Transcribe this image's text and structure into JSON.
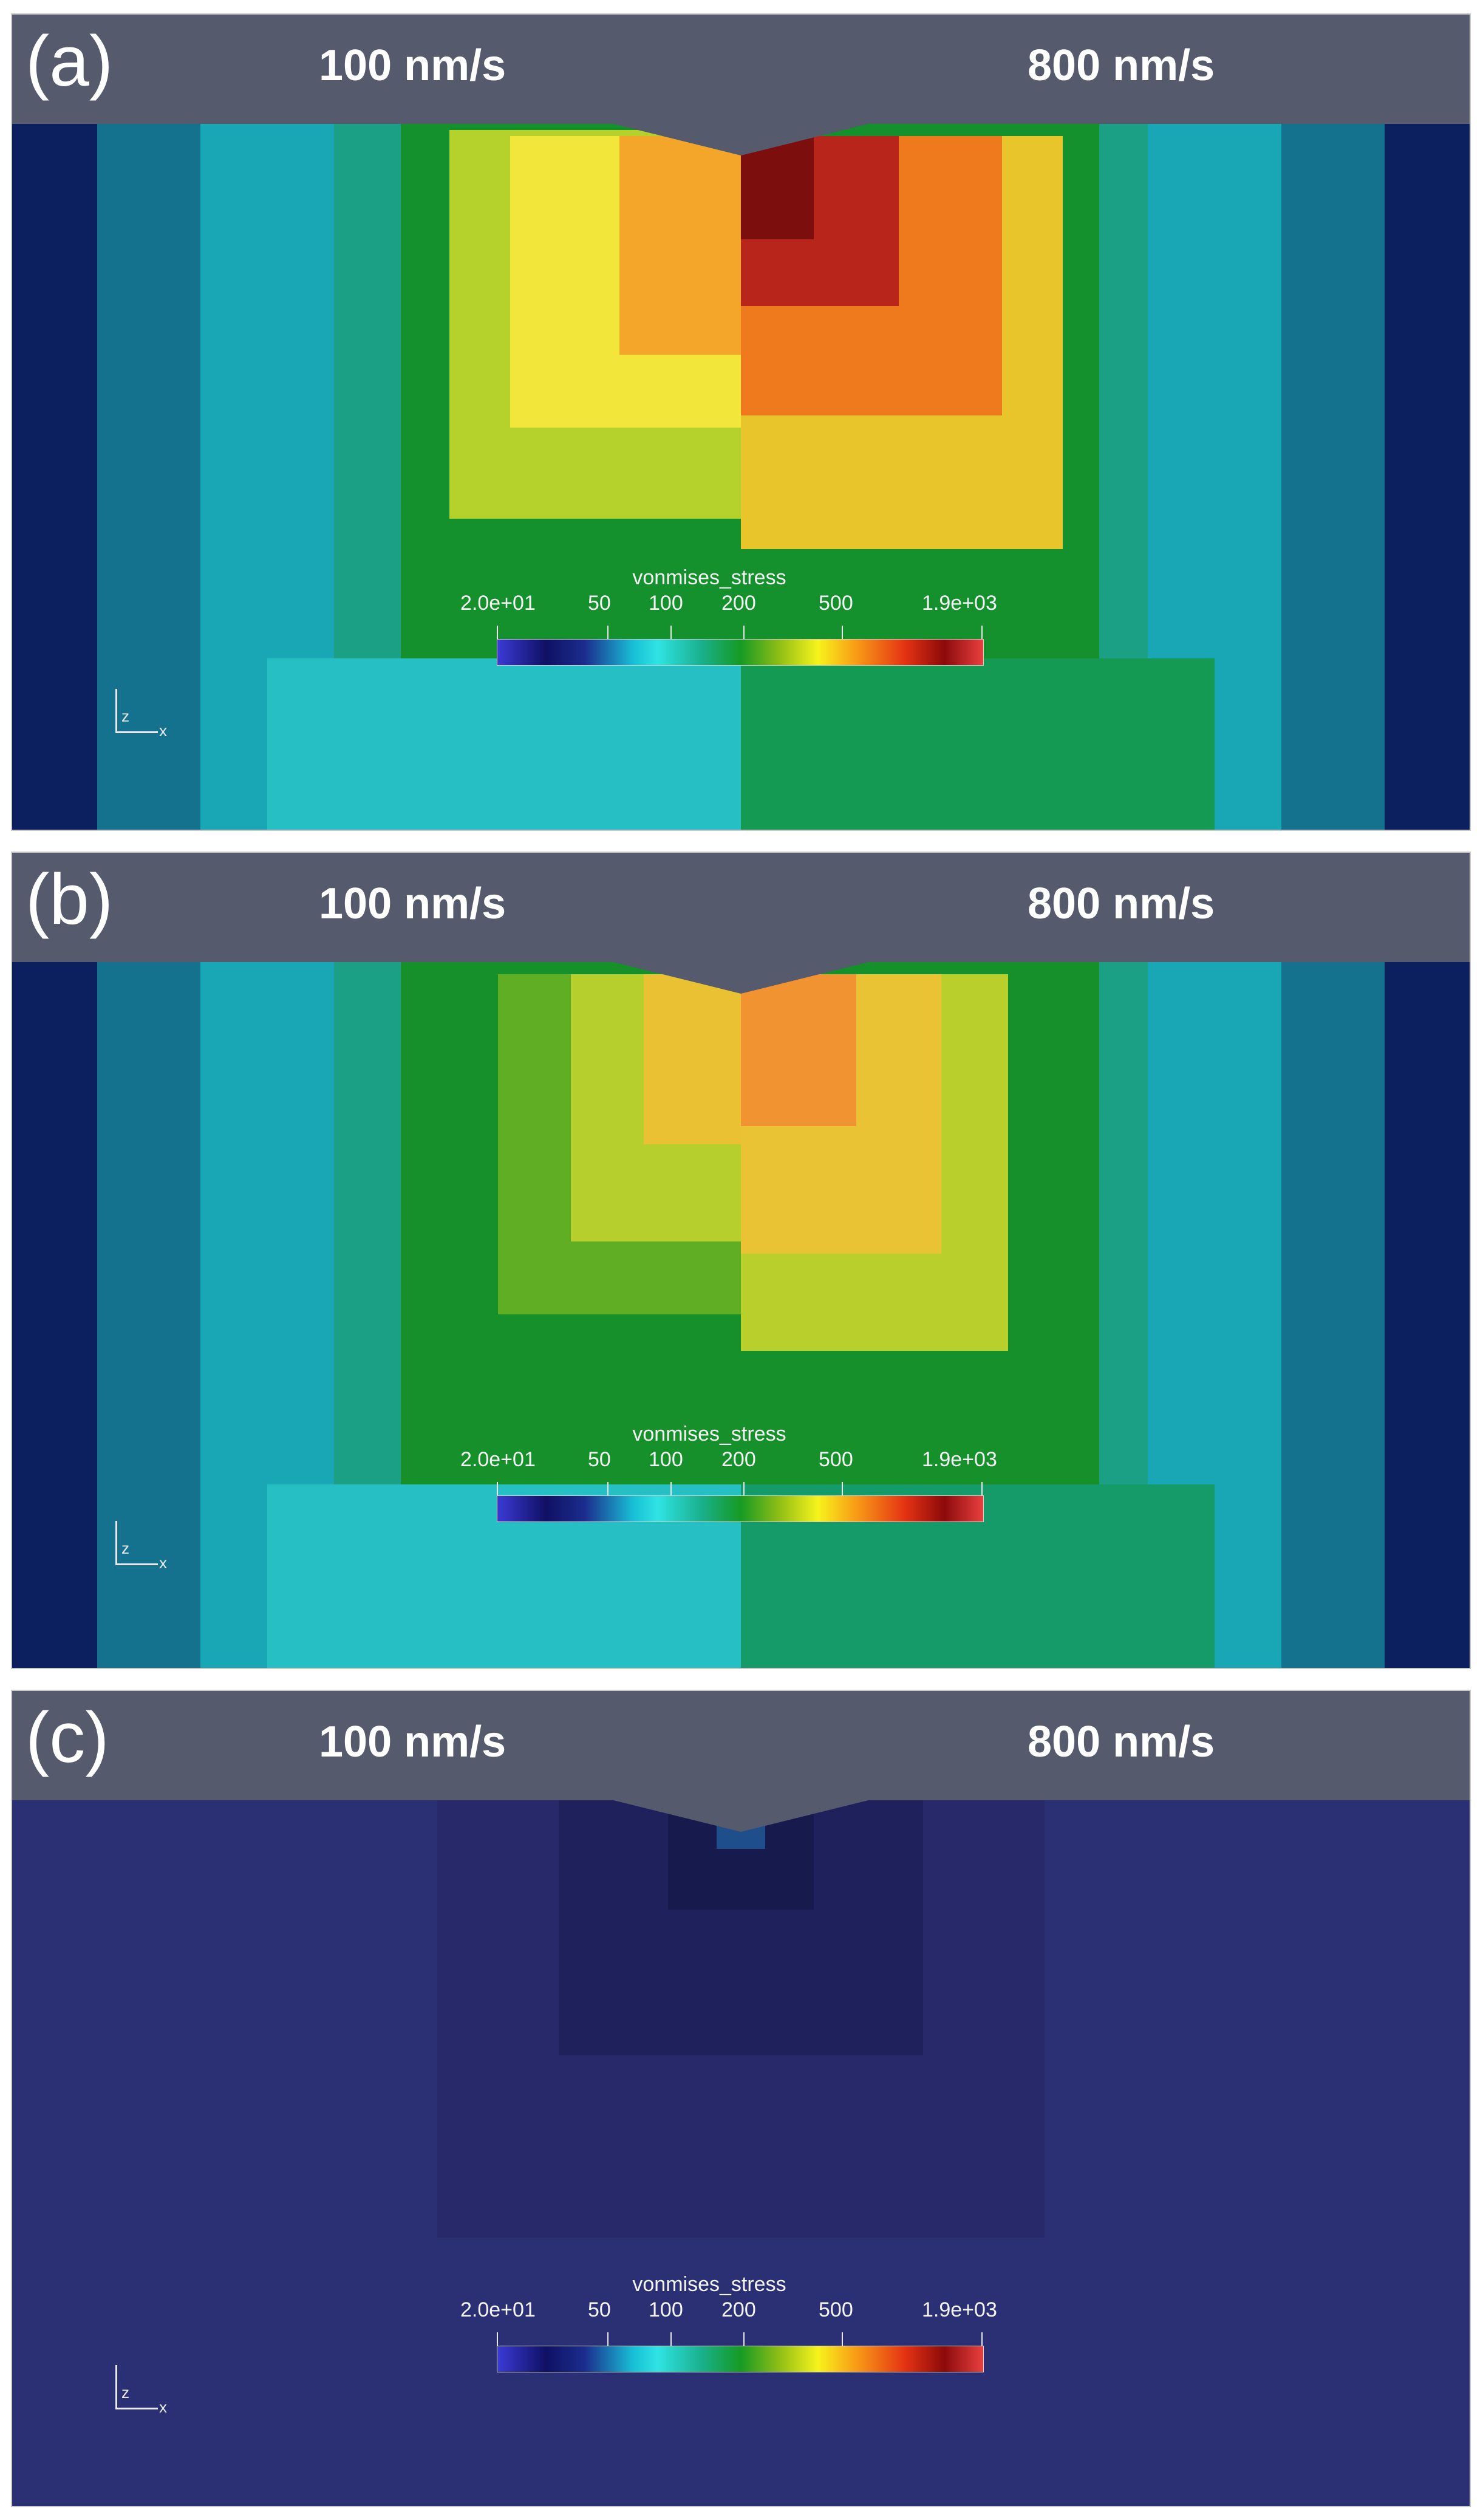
{
  "panels": [
    {
      "label": "(a)",
      "speed_left": "100 nm/s",
      "speed_right": "800 nm/s"
    },
    {
      "label": "(b)",
      "speed_left": "100 nm/s",
      "speed_right": "800 nm/s"
    },
    {
      "label": "(c)",
      "speed_left": "100 nm/s",
      "speed_right": "800 nm/s"
    }
  ],
  "legend": {
    "title": "vonmises_stress",
    "tick_labels": [
      "2.0e+01",
      "50",
      "100",
      "200",
      "500",
      "1.9e+03"
    ]
  },
  "axes_triad": {
    "z": "z",
    "x": "x"
  },
  "colors": {
    "header": "#555a6c",
    "background_c": "#2b2f73"
  }
}
